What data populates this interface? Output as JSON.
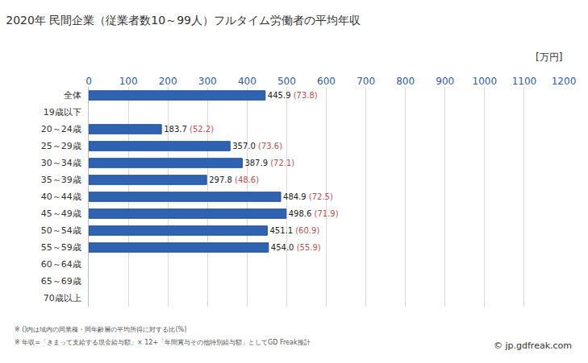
{
  "chart_data": {
    "type": "bar",
    "orientation": "horizontal",
    "title": "2020年 民間企業（従業者数10～99人）フルタイム労働者の平均年収",
    "unit_label": "[万円]",
    "categories": [
      "全体",
      "19歳以下",
      "20～24歳",
      "25～29歳",
      "30～34歳",
      "35～39歳",
      "40～44歳",
      "45～49歳",
      "50～54歳",
      "55～59歳",
      "60～64歳",
      "65～69歳",
      "70歳以上"
    ],
    "values": [
      445.9,
      null,
      183.7,
      357.0,
      387.9,
      297.8,
      484.9,
      498.6,
      451.1,
      454.0,
      null,
      null,
      null
    ],
    "value_labels": [
      "445.9",
      null,
      "183.7",
      "357.0",
      "387.9",
      "297.8",
      "484.9",
      "498.6",
      "451.1",
      "454.0",
      null,
      null,
      null
    ],
    "ratio_labels": [
      "(73.8)",
      null,
      "(52.2)",
      "(73.6)",
      "(72.1)",
      "(48.6)",
      "(72.5)",
      "(71.9)",
      "(60.9)",
      "(55.9)",
      null,
      null,
      null
    ],
    "color": "#2f62b0",
    "data_labels": true,
    "xlim": [
      0,
      1200
    ],
    "xticks": [
      0,
      100,
      200,
      300,
      400,
      500,
      600,
      700,
      800,
      900,
      1000,
      1100,
      1200
    ],
    "grid": true,
    "notes": [
      "※ ()内は域内の同業種・同年齢層の平均所得に対する比(%)",
      "※ 年収=「きまって支給する現金給与額」× 12+「年間賞与その他特別給与額」としてGD Freak推計"
    ],
    "source": "© jp.gdfreak.com"
  }
}
